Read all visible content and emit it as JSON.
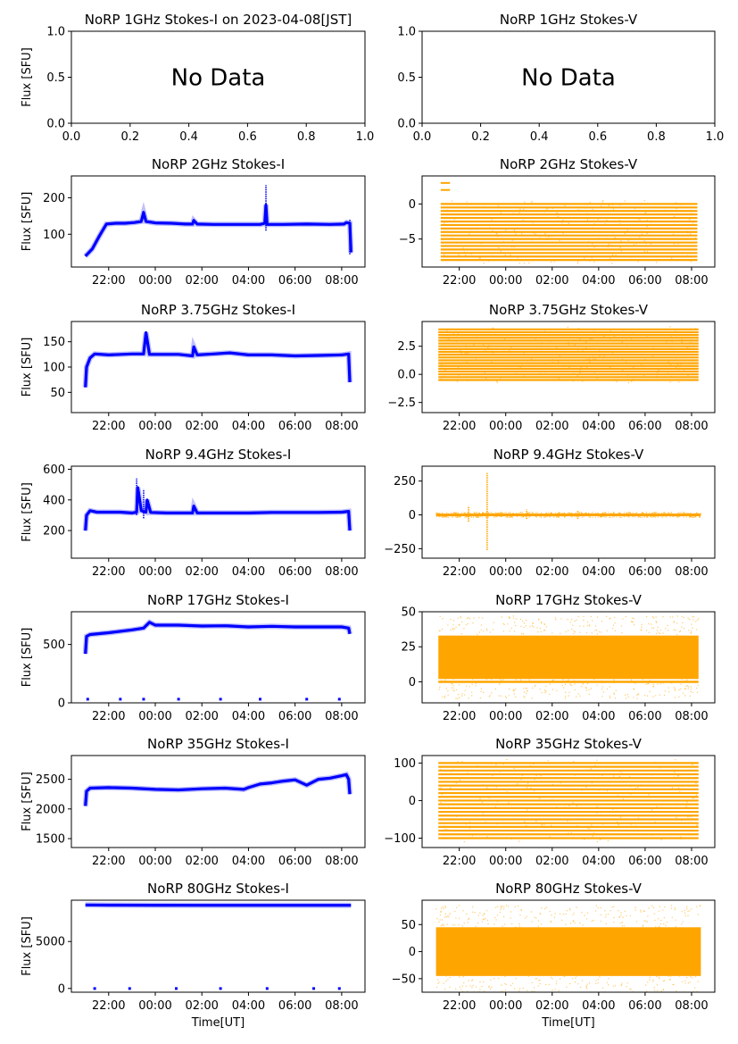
{
  "figure": {
    "xlabel": "Time[UT]",
    "ylabel": "Flux [SFU]",
    "colors": {
      "stokes_i": "#0000ff",
      "stokes_v": "#ffa500",
      "axes": "#000000"
    }
  },
  "chart_data": [
    {
      "type": "text",
      "title": "NoRP 1GHz Stokes-I on 2023-04-08[JST]",
      "message": "No Data",
      "xlim": [
        0,
        1
      ],
      "ylim": [
        0,
        1
      ],
      "xticks": [
        0,
        0.2,
        0.4,
        0.6,
        0.8,
        1
      ],
      "xtick_labels": [
        "0.0",
        "0.2",
        "0.4",
        "0.6",
        "0.8",
        "1.0"
      ],
      "yticks": [
        0,
        0.5,
        1
      ],
      "ytick_labels": [
        "0.0",
        "0.5",
        "1.0"
      ],
      "ylabel": "Flux [SFU]"
    },
    {
      "type": "text",
      "title": "NoRP 1GHz Stokes-V",
      "message": "No Data",
      "xlim": [
        0,
        1
      ],
      "ylim": [
        0,
        1
      ],
      "xticks": [
        0,
        0.2,
        0.4,
        0.6,
        0.8,
        1
      ],
      "xtick_labels": [
        "0.0",
        "0.2",
        "0.4",
        "0.6",
        "0.8",
        "1.0"
      ],
      "yticks": [
        0,
        0.5,
        1
      ],
      "ytick_labels": [
        "0.0",
        "0.5",
        "1.0"
      ]
    },
    {
      "type": "scatter",
      "title": "NoRP 2GHz Stokes-I",
      "ylabel": "Flux [SFU]",
      "ylim": [
        10,
        260
      ],
      "yticks": [
        100,
        200
      ],
      "ytick_labels": [
        "100",
        "200"
      ],
      "series": [
        {
          "color": "#0000ff",
          "style": "line",
          "x": [
            21.0,
            21.3,
            21.6,
            21.9,
            22.3,
            22.7,
            23.1,
            23.4,
            23.5,
            23.6,
            24.0,
            24.7,
            25.3,
            25.6,
            25.65,
            25.8,
            26.5,
            27.5,
            28.5,
            28.7,
            28.75,
            28.8,
            29.5,
            30.5,
            31.5,
            32.1,
            32.2,
            32.35,
            32.4
          ],
          "y": [
            40,
            60,
            95,
            128,
            130,
            130,
            132,
            135,
            160,
            135,
            131,
            130,
            128,
            128,
            138,
            128,
            127,
            127,
            127,
            130,
            180,
            127,
            127,
            128,
            127,
            128,
            132,
            130,
            50
          ]
        }
      ],
      "spikes": [
        {
          "x": 28.75,
          "y0": 110,
          "y1": 235
        },
        {
          "x": 32.35,
          "y0": 45,
          "y1": 140
        }
      ]
    },
    {
      "type": "scatter",
      "title": "NoRP 2GHz Stokes-V",
      "ylim": [
        -9,
        4
      ],
      "yticks": [
        -5,
        0
      ],
      "ytick_labels": [
        "−5",
        "0"
      ],
      "series": [
        {
          "color": "#ffa500",
          "style": "levels",
          "x0": 21.2,
          "x1": 32.25,
          "levels_from": -8,
          "levels_to": 0,
          "step": 0.5,
          "top_extra": [
            2,
            3
          ]
        }
      ]
    },
    {
      "type": "scatter",
      "title": "NoRP 3.75GHz Stokes-I",
      "ylabel": "Flux [SFU]",
      "ylim": [
        10,
        190
      ],
      "yticks": [
        50,
        100,
        150
      ],
      "ytick_labels": [
        "50",
        "100",
        "150"
      ],
      "series": [
        {
          "color": "#0000ff",
          "style": "line",
          "x": [
            21.0,
            21.05,
            21.2,
            21.4,
            22.0,
            23.0,
            23.5,
            23.6,
            23.75,
            24.0,
            25.0,
            25.6,
            25.65,
            25.8,
            26.5,
            27.2,
            28.0,
            29.0,
            30.0,
            31.0,
            32.0,
            32.3,
            32.35
          ],
          "y": [
            60,
            100,
            118,
            126,
            124,
            126,
            126,
            168,
            125,
            125,
            125,
            122,
            140,
            124,
            126,
            128,
            124,
            124,
            122,
            123,
            124,
            126,
            70
          ]
        }
      ]
    },
    {
      "type": "scatter",
      "title": "NoRP 3.75GHz Stokes-V",
      "ylim": [
        -3.4,
        4.7
      ],
      "yticks": [
        -2.5,
        0,
        2.5
      ],
      "ytick_labels": [
        "−2.5",
        "0.0",
        "2.5"
      ],
      "series": [
        {
          "color": "#ffa500",
          "style": "levels",
          "x0": 21.1,
          "x1": 32.3,
          "levels_from": -0.5,
          "levels_to": 4.0,
          "step": 0.25,
          "top_extra": []
        }
      ]
    },
    {
      "type": "scatter",
      "title": "NoRP 9.4GHz Stokes-I",
      "ylabel": "Flux [SFU]",
      "ylim": [
        20,
        620
      ],
      "yticks": [
        200,
        400,
        600
      ],
      "ytick_labels": [
        "200",
        "400",
        "600"
      ],
      "series": [
        {
          "color": "#0000ff",
          "style": "line",
          "x": [
            21.0,
            21.05,
            21.2,
            21.5,
            22.5,
            23.0,
            23.2,
            23.25,
            23.4,
            23.6,
            23.65,
            23.8,
            24.5,
            25.6,
            25.65,
            25.8,
            27.0,
            28.0,
            29.0,
            30.0,
            31.0,
            32.0,
            32.3,
            32.35
          ],
          "y": [
            200,
            300,
            330,
            320,
            320,
            315,
            320,
            480,
            330,
            320,
            400,
            318,
            315,
            315,
            360,
            315,
            315,
            315,
            318,
            318,
            318,
            320,
            325,
            200
          ]
        }
      ],
      "spikes": [
        {
          "x": 23.2,
          "y0": 300,
          "y1": 540
        },
        {
          "x": 23.5,
          "y0": 280,
          "y1": 470
        }
      ]
    },
    {
      "type": "scatter",
      "title": "NoRP 9.4GHz Stokes-V",
      "ylim": [
        -320,
        360
      ],
      "yticks": [
        -250,
        0,
        250
      ],
      "ytick_labels": [
        "−250",
        "0",
        "250"
      ],
      "series": [
        {
          "color": "#ffa500",
          "style": "band",
          "x0": 21.0,
          "x1": 32.4,
          "y_low": -10,
          "y_high": 10
        }
      ],
      "spikes": [
        {
          "x": 23.2,
          "y0": -260,
          "y1": 310
        },
        {
          "x": 22.4,
          "y0": -50,
          "y1": 60
        },
        {
          "x": 24.9,
          "y0": -30,
          "y1": 40
        },
        {
          "x": 27.1,
          "y0": -30,
          "y1": 30
        }
      ]
    },
    {
      "type": "scatter",
      "title": "NoRP 17GHz Stokes-I",
      "ylabel": "Flux [SFU]",
      "ylim": [
        0,
        780
      ],
      "yticks": [
        0,
        500
      ],
      "ytick_labels": [
        "0",
        "500"
      ],
      "series": [
        {
          "color": "#0000ff",
          "style": "line",
          "x": [
            21.0,
            21.05,
            21.2,
            22.0,
            23.0,
            23.5,
            23.75,
            24.0,
            25.0,
            26.0,
            27.0,
            28.0,
            29.0,
            30.0,
            31.0,
            32.0,
            32.3,
            32.35
          ],
          "y": [
            420,
            570,
            585,
            600,
            625,
            640,
            690,
            665,
            665,
            658,
            660,
            650,
            655,
            650,
            650,
            650,
            640,
            590
          ]
        }
      ],
      "dropouts": [
        21.1,
        22.5,
        23.5,
        25.0,
        26.8,
        28.5,
        30.5,
        31.9
      ]
    },
    {
      "type": "scatter",
      "title": "NoRP 17GHz Stokes-V",
      "ylim": [
        -15,
        50
      ],
      "yticks": [
        0,
        25,
        50
      ],
      "ytick_labels": [
        "0",
        "25",
        "50"
      ],
      "series": [
        {
          "color": "#ffa500",
          "style": "band",
          "x0": 21.1,
          "x1": 32.3,
          "y_low": 2,
          "y_high": 33
        }
      ],
      "baseline": 0
    },
    {
      "type": "scatter",
      "title": "NoRP 35GHz Stokes-I",
      "ylabel": "Flux [SFU]",
      "ylim": [
        1350,
        2900
      ],
      "yticks": [
        1500,
        2000,
        2500
      ],
      "ytick_labels": [
        "1500",
        "2000",
        "2500"
      ],
      "series": [
        {
          "color": "#0000ff",
          "style": "line",
          "x": [
            21.0,
            21.05,
            21.2,
            22.0,
            23.0,
            24.0,
            25.0,
            26.0,
            27.0,
            27.8,
            28.0,
            28.5,
            29.0,
            29.5,
            30.0,
            30.5,
            31.0,
            31.5,
            32.0,
            32.2,
            32.3,
            32.35
          ],
          "y": [
            2050,
            2300,
            2350,
            2360,
            2350,
            2330,
            2320,
            2340,
            2350,
            2330,
            2360,
            2420,
            2440,
            2470,
            2490,
            2400,
            2500,
            2520,
            2560,
            2580,
            2500,
            2250
          ]
        }
      ]
    },
    {
      "type": "scatter",
      "title": "NoRP 35GHz Stokes-V",
      "ylim": [
        -125,
        120
      ],
      "yticks": [
        -100,
        0,
        100
      ],
      "ytick_labels": [
        "−100",
        "0",
        "100"
      ],
      "series": [
        {
          "color": "#ffa500",
          "style": "levels",
          "x0": 21.1,
          "x1": 32.3,
          "levels_from": -100,
          "levels_to": 100,
          "step": 10,
          "top_extra": []
        }
      ]
    },
    {
      "type": "scatter",
      "title": "NoRP 80GHz Stokes-I",
      "ylabel": "Flux [SFU]",
      "xlabel": "Time[UT]",
      "ylim": [
        -400,
        9400
      ],
      "yticks": [
        0,
        5000
      ],
      "ytick_labels": [
        "0",
        "5000"
      ],
      "series": [
        {
          "color": "#0000ff",
          "style": "line",
          "x": [
            21.0,
            22.0,
            24.0,
            26.0,
            28.0,
            30.0,
            32.0,
            32.4
          ],
          "y": [
            8900,
            8880,
            8870,
            8860,
            8860,
            8860,
            8860,
            8860
          ]
        }
      ],
      "dropouts": [
        21.4,
        22.9,
        24.9,
        26.8,
        28.8,
        30.8,
        31.9
      ]
    },
    {
      "type": "scatter",
      "title": "NoRP 80GHz Stokes-V",
      "xlabel": "Time[UT]",
      "ylim": [
        -75,
        95
      ],
      "yticks": [
        -50,
        0,
        50
      ],
      "ytick_labels": [
        "−50",
        "0",
        "50"
      ],
      "series": [
        {
          "color": "#ffa500",
          "style": "band",
          "x0": 21.0,
          "x1": 32.4,
          "y_low": -45,
          "y_high": 45
        }
      ]
    }
  ],
  "time_axis": {
    "xlim": [
      20.4,
      33.0
    ],
    "ticks": [
      22,
      24,
      26,
      28,
      30,
      32
    ],
    "tick_labels": [
      "22:00",
      "00:00",
      "02:00",
      "04:00",
      "06:00",
      "08:00"
    ]
  }
}
